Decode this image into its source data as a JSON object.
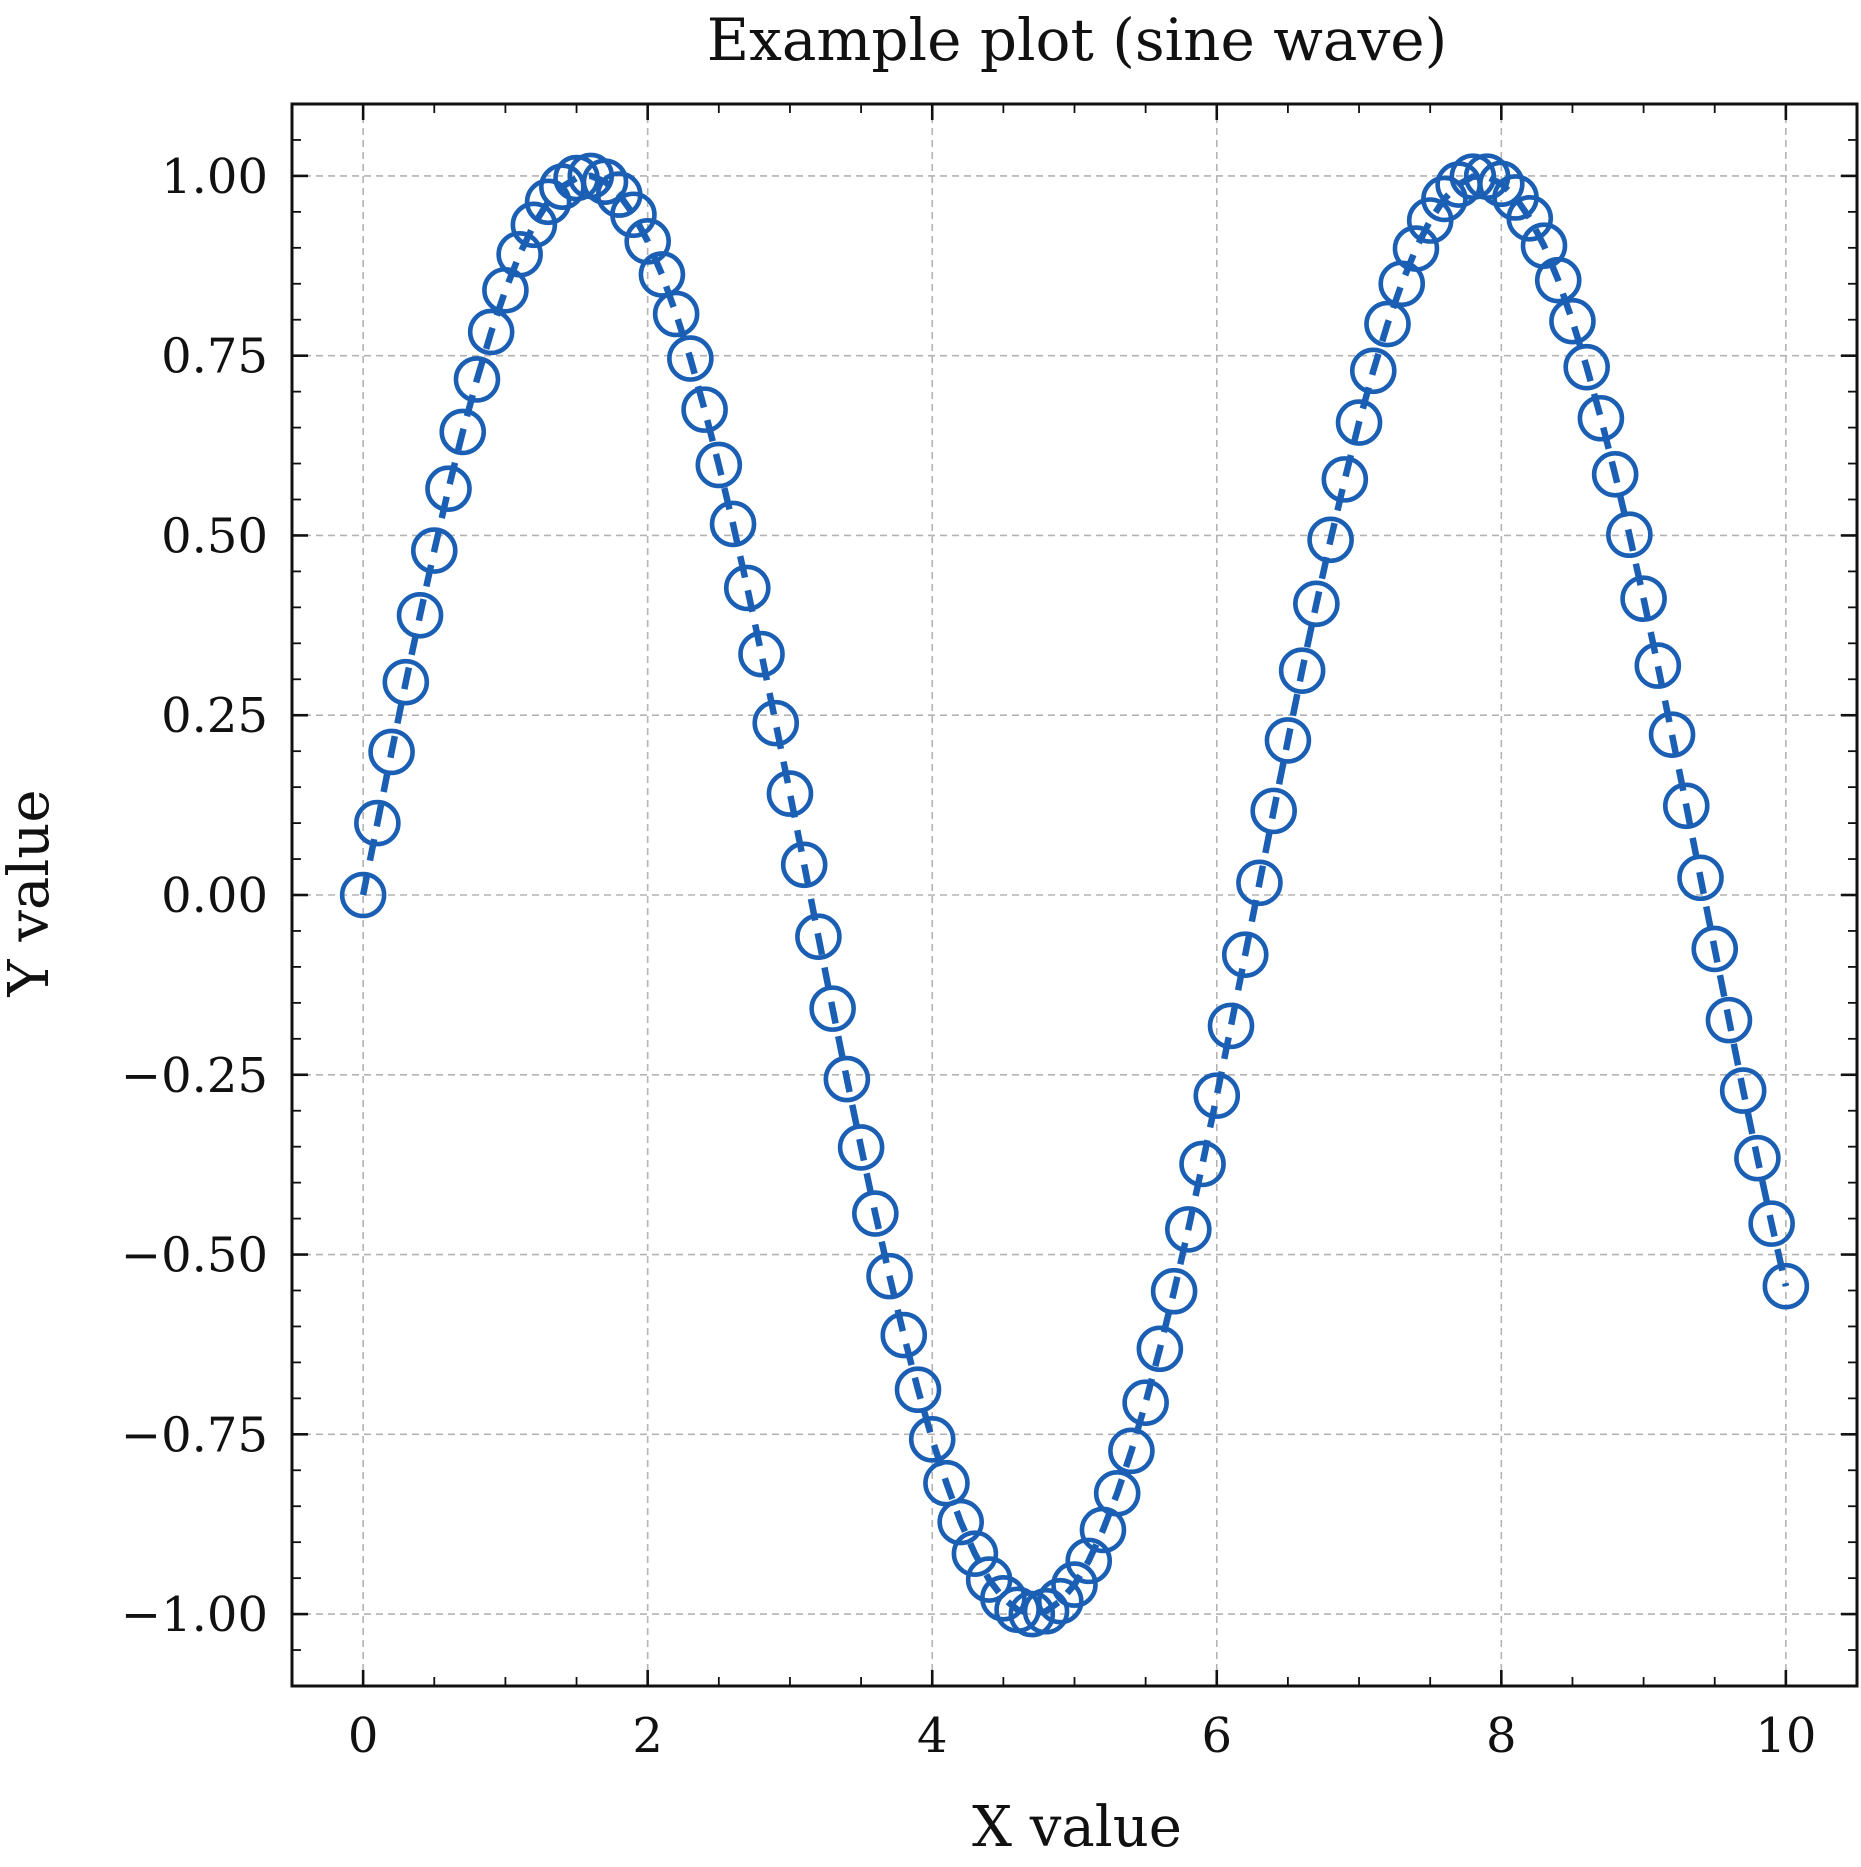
{
  "chart_data": {
    "type": "line",
    "title": "Example plot (sine wave)",
    "xlabel": "X value",
    "ylabel": "Y value",
    "xlim": [
      -0.5,
      10.5
    ],
    "ylim": [
      -1.1,
      1.1
    ],
    "xticks": [
      0,
      2,
      4,
      6,
      8,
      10
    ],
    "xtick_labels": [
      "0",
      "2",
      "4",
      "6",
      "8",
      "10"
    ],
    "yticks": [
      -1.0,
      -0.75,
      -0.5,
      -0.25,
      0.0,
      0.25,
      0.5,
      0.75,
      1.0
    ],
    "ytick_labels": [
      "−1.00",
      "−0.75",
      "−0.50",
      "−0.25",
      "0.00",
      "0.25",
      "0.50",
      "0.75",
      "1.00"
    ],
    "grid": true,
    "color": "#1a5fb4",
    "series": [
      {
        "line_style": "dashed",
        "marker": "open-circle",
        "x": [
          0.0,
          0.1,
          0.2,
          0.3,
          0.4,
          0.5,
          0.6,
          0.7,
          0.8,
          0.9,
          1.0,
          1.1,
          1.2,
          1.3,
          1.4,
          1.5,
          1.6,
          1.7,
          1.8,
          1.9,
          2.0,
          2.1,
          2.2,
          2.3,
          2.4,
          2.5,
          2.6,
          2.7,
          2.8,
          2.9,
          3.0,
          3.1,
          3.2,
          3.3,
          3.4,
          3.5,
          3.6,
          3.7,
          3.8,
          3.9,
          4.0,
          4.1,
          4.2,
          4.3,
          4.4,
          4.5,
          4.6,
          4.7,
          4.8,
          4.9,
          5.0,
          5.1,
          5.2,
          5.3,
          5.4,
          5.5,
          5.6,
          5.7,
          5.8,
          5.9,
          6.0,
          6.1,
          6.2,
          6.3,
          6.4,
          6.5,
          6.6,
          6.7,
          6.8,
          6.9,
          7.0,
          7.1,
          7.2,
          7.3,
          7.4,
          7.5,
          7.6,
          7.7,
          7.8,
          7.9,
          8.0,
          8.1,
          8.2,
          8.3,
          8.4,
          8.5,
          8.6,
          8.7,
          8.8,
          8.9,
          9.0,
          9.1,
          9.2,
          9.3,
          9.4,
          9.5,
          9.6,
          9.7,
          9.8,
          9.9,
          10.0
        ],
        "y": [
          0.0,
          0.1,
          0.199,
          0.296,
          0.389,
          0.479,
          0.565,
          0.644,
          0.717,
          0.783,
          0.841,
          0.891,
          0.932,
          0.964,
          0.985,
          0.997,
          1.0,
          0.992,
          0.974,
          0.946,
          0.909,
          0.863,
          0.808,
          0.746,
          0.675,
          0.598,
          0.516,
          0.427,
          0.335,
          0.239,
          0.141,
          0.042,
          -0.058,
          -0.158,
          -0.256,
          -0.351,
          -0.443,
          -0.53,
          -0.612,
          -0.688,
          -0.757,
          -0.818,
          -0.872,
          -0.916,
          -0.952,
          -0.978,
          -0.994,
          -1.0,
          -0.996,
          -0.982,
          -0.959,
          -0.926,
          -0.883,
          -0.832,
          -0.773,
          -0.706,
          -0.631,
          -0.551,
          -0.465,
          -0.374,
          -0.279,
          -0.182,
          -0.083,
          0.017,
          0.117,
          0.215,
          0.312,
          0.405,
          0.494,
          0.578,
          0.657,
          0.729,
          0.794,
          0.85,
          0.899,
          0.938,
          0.968,
          0.988,
          0.999,
          0.999,
          0.989,
          0.97,
          0.941,
          0.903,
          0.855,
          0.798,
          0.734,
          0.663,
          0.585,
          0.501,
          0.412,
          0.319,
          0.223,
          0.124,
          0.024,
          -0.075,
          -0.174,
          -0.272,
          -0.366,
          -0.457,
          -0.544
        ]
      }
    ]
  }
}
